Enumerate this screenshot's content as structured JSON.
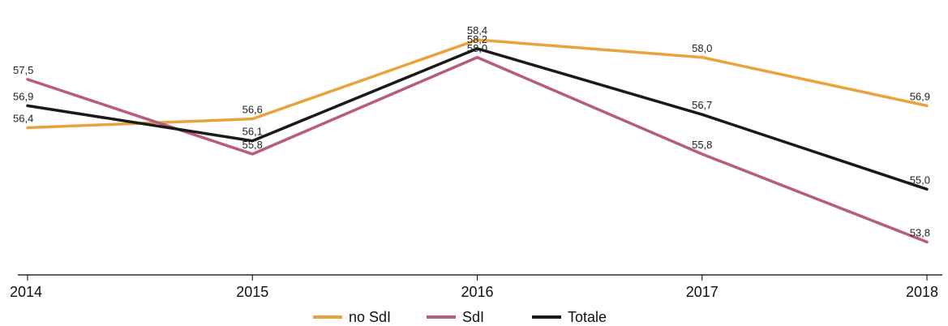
{
  "chart_data": {
    "type": "line",
    "categories": [
      "2014",
      "2015",
      "2016",
      "2017",
      "2018"
    ],
    "series": [
      {
        "name": "no SdI",
        "color": "#E8A33A",
        "values": [
          56.4,
          56.6,
          58.4,
          58.0,
          56.9
        ],
        "labels": [
          "56,4",
          "56,6",
          "58,4",
          "58,0",
          "56,9"
        ]
      },
      {
        "name": "SdI",
        "color": "#B85C7E",
        "values": [
          57.5,
          55.8,
          58.0,
          55.8,
          53.8
        ],
        "labels": [
          "57,5",
          "55,8",
          "58,0",
          "55,8",
          "53,8"
        ]
      },
      {
        "name": "Totale",
        "color": "#1A1A1A",
        "values": [
          56.9,
          56.1,
          58.2,
          56.7,
          55.0
        ],
        "labels": [
          "56,9",
          "56,1",
          "58,2",
          "56,7",
          "55,0"
        ]
      }
    ],
    "ylim": [
      53.4,
      58.9
    ],
    "legend_position": "bottom-center",
    "grid": false
  }
}
